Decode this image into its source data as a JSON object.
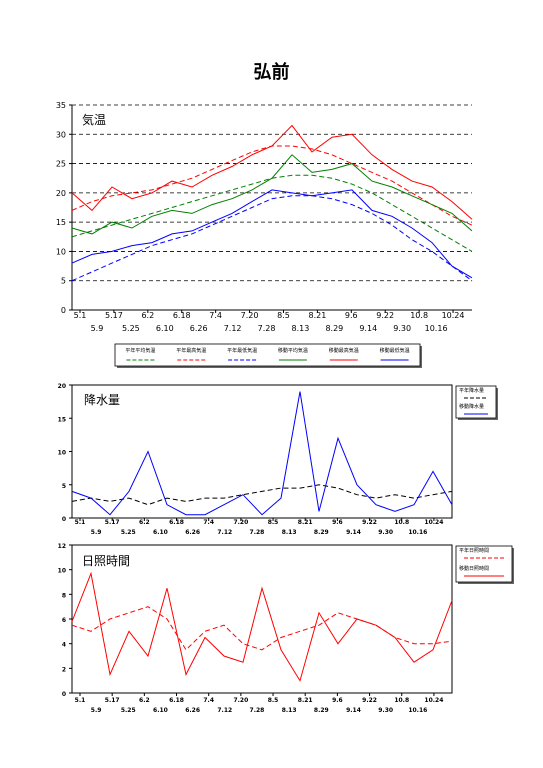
{
  "page": {
    "title": "弘前"
  },
  "chart_data": [
    {
      "type": "line",
      "title": "気温",
      "ylim": [
        0,
        35
      ],
      "yticks": [
        0,
        5,
        10,
        15,
        20,
        25,
        30,
        35
      ],
      "grid": "horizontal dashed",
      "x_ticks_top": [
        "5.1",
        "5.17",
        "6.2",
        "6.18",
        "7.4",
        "7.20",
        "8.5",
        "8.21",
        "9.6",
        "9.22",
        "10.8",
        "10.24"
      ],
      "x_ticks_bottom": [
        "5.9",
        "5.25",
        "6.10",
        "6.26",
        "7.12",
        "7.28",
        "8.13",
        "8.29",
        "9.14",
        "9.30",
        "10.16"
      ],
      "legend_placement": "bottom",
      "series": [
        {
          "name": "平年平均気温",
          "color": "#008000",
          "style": "dashed",
          "values": [
            12.5,
            13.5,
            14.5,
            15.5,
            16.5,
            17.5,
            18.5,
            19.5,
            20.5,
            21.5,
            22.5,
            23.0,
            23.0,
            22.5,
            21.5,
            20.0,
            18.0,
            16.0,
            14.0,
            12.0,
            10.0
          ]
        },
        {
          "name": "平年最高気温",
          "color": "#ff0000",
          "style": "dashed",
          "values": [
            17.0,
            18.5,
            19.5,
            20.0,
            20.5,
            21.5,
            22.5,
            24.0,
            25.5,
            27.0,
            28.0,
            28.0,
            27.5,
            26.5,
            25.0,
            23.5,
            22.0,
            20.0,
            18.0,
            16.0,
            14.5
          ]
        },
        {
          "name": "平年最低気温",
          "color": "#0000ff",
          "style": "dashed",
          "values": [
            5.0,
            6.5,
            8.0,
            9.5,
            11.0,
            12.0,
            13.0,
            14.5,
            16.0,
            17.5,
            19.0,
            19.5,
            19.5,
            19.0,
            18.0,
            16.5,
            14.5,
            12.0,
            10.0,
            7.5,
            5.0
          ]
        },
        {
          "name": "移動平均気温",
          "color": "#008000",
          "style": "solid",
          "values": [
            14.0,
            13.0,
            15.0,
            14.0,
            16.0,
            17.0,
            16.5,
            18.0,
            19.0,
            20.5,
            22.5,
            26.5,
            23.5,
            24.0,
            25.0,
            22.0,
            21.0,
            19.5,
            18.0,
            16.5,
            13.5
          ]
        },
        {
          "name": "移動最高気温",
          "color": "#ff0000",
          "style": "solid",
          "values": [
            20.0,
            17.0,
            21.0,
            19.0,
            20.0,
            22.0,
            21.0,
            23.0,
            24.5,
            26.5,
            28.0,
            31.5,
            27.0,
            29.5,
            30.0,
            26.5,
            24.0,
            22.0,
            21.0,
            18.5,
            15.5
          ]
        },
        {
          "name": "移動最低気温",
          "color": "#0000ff",
          "style": "solid",
          "values": [
            8.0,
            9.5,
            10.0,
            11.0,
            11.5,
            13.0,
            13.5,
            15.0,
            16.5,
            18.5,
            20.5,
            20.0,
            19.5,
            20.0,
            20.5,
            17.0,
            16.0,
            14.0,
            11.5,
            7.5,
            5.5
          ]
        }
      ]
    },
    {
      "type": "line",
      "title": "降水量",
      "ylim": [
        0,
        20
      ],
      "yticks": [
        0,
        5,
        10,
        15,
        20
      ],
      "x_ticks_top": [
        "5.1",
        "5.17",
        "6.2",
        "6.18",
        "7.4",
        "7.20",
        "8.5",
        "8.21",
        "9.6",
        "9.22",
        "10.8",
        "10.24"
      ],
      "x_ticks_bottom": [
        "5.9",
        "5.25",
        "6.10",
        "6.26",
        "7.12",
        "7.28",
        "8.13",
        "8.29",
        "9.14",
        "9.30",
        "10.16"
      ],
      "legend_placement": "right",
      "series": [
        {
          "name": "平年降水量",
          "color": "#000000",
          "style": "dashed",
          "values": [
            2.5,
            3.0,
            2.5,
            3.0,
            2.0,
            3.0,
            2.5,
            3.0,
            3.0,
            3.5,
            4.0,
            4.5,
            4.5,
            5.0,
            4.5,
            3.5,
            3.0,
            3.5,
            3.0,
            3.5,
            4.0
          ]
        },
        {
          "name": "移動降水量",
          "color": "#0000ff",
          "style": "solid",
          "values": [
            4.0,
            3.0,
            0.5,
            4.0,
            10.0,
            2.0,
            0.5,
            0.5,
            2.0,
            3.5,
            0.5,
            3.0,
            19.0,
            1.0,
            12.0,
            5.0,
            2.0,
            1.0,
            2.0,
            7.0,
            2.0
          ]
        }
      ]
    },
    {
      "type": "line",
      "title": "日照時間",
      "ylim": [
        0,
        12
      ],
      "yticks": [
        0,
        2,
        4,
        6,
        8,
        10,
        12
      ],
      "x_ticks_top": [
        "5.1",
        "5.17",
        "6.2",
        "6.18",
        "7.4",
        "7.20",
        "8.5",
        "8.21",
        "9.6",
        "9.22",
        "10.8",
        "10.24"
      ],
      "x_ticks_bottom": [
        "5.9",
        "5.25",
        "6.10",
        "6.26",
        "7.12",
        "7.28",
        "8.13",
        "8.29",
        "9.14",
        "9.30",
        "10.16"
      ],
      "legend_placement": "right",
      "series": [
        {
          "name": "平年日照時間",
          "color": "#ff0000",
          "style": "dashed",
          "values": [
            5.5,
            5.0,
            6.0,
            6.5,
            7.0,
            6.0,
            3.5,
            5.0,
            5.5,
            4.0,
            3.5,
            4.5,
            5.0,
            5.5,
            6.5,
            6.0,
            5.5,
            4.5,
            4.0,
            4.0,
            4.2
          ]
        },
        {
          "name": "移動日照時間",
          "color": "#ff0000",
          "style": "solid",
          "values": [
            5.8,
            9.7,
            1.5,
            5.0,
            3.0,
            8.5,
            1.5,
            4.5,
            3.0,
            2.5,
            8.5,
            3.5,
            1.0,
            6.5,
            4.0,
            6.0,
            5.5,
            4.5,
            2.5,
            3.5,
            7.5
          ]
        }
      ]
    }
  ]
}
